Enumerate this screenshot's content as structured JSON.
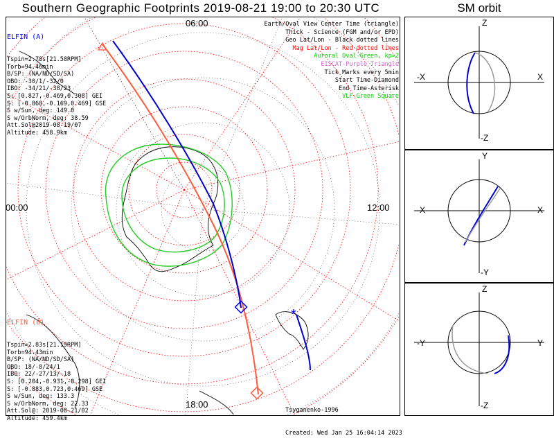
{
  "title": "Southern Geographic Footprints 2019-08-21 19:00 to 20:30 UTC",
  "sm_title": "SM orbit",
  "clock_labels": {
    "top": "06:00",
    "left": "00:00",
    "right": "12:00",
    "bottom": "18:00"
  },
  "elfin_a": {
    "name": "ELFIN (A)",
    "lines": [
      "Tspin=2.78s[21.58RPM]",
      "Torb=94.46min",
      "B/SP: (NA/ND/SD/SA)",
      "OBO: -30/1/-32/0",
      "IBO: -34/21/-38/23",
      "S: [0.827,-0.469,0.308] GEI",
      "S: [-0.868,-0.169,0.469] GSE",
      "S w/Sun, deg: 149.0",
      "S w/OrbNorm, deg: 38.59",
      "Att.Sol@2019-08-19/07",
      "Altitude: 458.9km"
    ],
    "color": "#0000ff"
  },
  "elfin_b": {
    "name": "ELFIN (B)",
    "lines": [
      "Tspin=2.83s[21.19RPM]",
      "Torb=94.43min",
      "B/SP: (NA/ND/SD/SA)",
      "OBO: 18/-8/24/1",
      "IBO: 22/-27/13/-18",
      "S: [0.204,-0.931,-0.298] GEI",
      "S: [-0.883,0.723,0.469] GSE",
      "S w/Sun, deg: 133.3",
      "S w/OrbNorm, deg: 22.33",
      "Att.Sol@: 2019-08-21/02",
      "Altitude: 459.4km"
    ],
    "color": "#ff5a3c"
  },
  "legend": [
    {
      "text": "Earth/Oval View Center Time (triangle)",
      "color": "#000000"
    },
    {
      "text": "Thick - Science (FGM and/or EPD)",
      "color": "#000000"
    },
    {
      "text": "Geo Lat/Lon - Black dotted lines",
      "color": "#000000"
    },
    {
      "text": "Mag Lat/Lon - Red dotted lines",
      "color": "#ff0000"
    },
    {
      "text": "Auroral Oval-Green, kp=2",
      "color": "#00cc00"
    },
    {
      "text": "EISCAT-Purple Triangle",
      "color": "#cc66cc"
    },
    {
      "text": "Tick Marks every 5min",
      "color": "#000000"
    },
    {
      "text": "Start Time-Diamond",
      "color": "#000000"
    },
    {
      "text": "End Time-Asterisk",
      "color": "#000000"
    },
    {
      "text": "VLF-Green Square",
      "color": "#00cc00"
    }
  ],
  "footer": {
    "model": "Tsyganenko-1996",
    "created": "Created: Wed Jan 25 16:04:14 2023"
  },
  "sm_panels": [
    {
      "left": "-X",
      "right": "X",
      "top": "Z",
      "bottom": "-Z"
    },
    {
      "left": "-X",
      "right": "X",
      "top": "Y",
      "bottom": "-Y"
    },
    {
      "left": "-Y",
      "right": "Y",
      "top": "Z",
      "bottom": "-Z"
    }
  ],
  "chart_data": {
    "type": "polar-map",
    "title": "Southern Geographic Footprints 2019-08-21 19:00 to 20:30 UTC",
    "series": [
      {
        "name": "ELFIN (A)",
        "color": "#0000ff"
      },
      {
        "name": "ELFIN (B)",
        "color": "#ff5a3c"
      }
    ],
    "local_time_labels": [
      "06:00",
      "12:00",
      "18:00",
      "00:00"
    ]
  }
}
